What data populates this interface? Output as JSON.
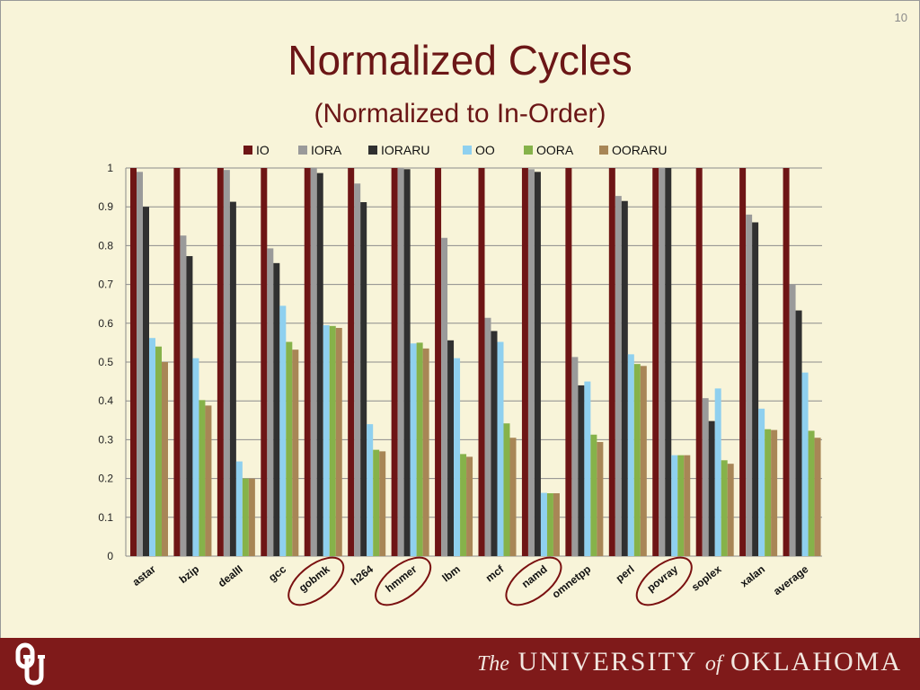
{
  "slide": {
    "page_number": "10",
    "title": "Normalized Cycles",
    "subtitle": "(Normalized to In-Order)"
  },
  "footer": {
    "university_prefix": "The",
    "university_main": "UNIVERSITY",
    "university_of": "of",
    "university_state": "OKLAHOMA",
    "logo_icon": "ou-logo-icon"
  },
  "colors": {
    "title": "#6b1616",
    "footer_bg": "#7f1a1a",
    "circle": "#7a1010"
  },
  "chart_data": {
    "type": "bar",
    "title": "",
    "xlabel": "",
    "ylabel": "",
    "ylim": [
      0,
      1
    ],
    "yticks": [
      "0",
      "0.1",
      "0.2",
      "0.3",
      "0.4",
      "0.5",
      "0.6",
      "0.7",
      "0.8",
      "0.9",
      "1"
    ],
    "grid": true,
    "legend_position": "top",
    "categories": [
      "astar",
      "bzip",
      "dealII",
      "gcc",
      "gobmk",
      "h264",
      "hmmer",
      "lbm",
      "mcf",
      "namd",
      "omnetpp",
      "perl",
      "povray",
      "soplex",
      "xalan",
      "average"
    ],
    "circled_categories": [
      "gobmk",
      "hmmer",
      "namd",
      "povray"
    ],
    "series": [
      {
        "name": "IO",
        "color": "#6e1515",
        "values": [
          1,
          1,
          1,
          1,
          1,
          1,
          1,
          1,
          1,
          1,
          1,
          1,
          1,
          1,
          1,
          1
        ]
      },
      {
        "name": "IORA",
        "color": "#9a9a9a",
        "values": [
          0.99,
          0.826,
          0.995,
          0.793,
          1.0,
          0.96,
          1.0,
          0.82,
          0.614,
          0.997,
          0.513,
          0.928,
          1.0,
          0.407,
          0.88,
          0.7
        ]
      },
      {
        "name": "IORARU",
        "color": "#303030",
        "values": [
          0.9,
          0.773,
          0.913,
          0.755,
          0.987,
          0.912,
          0.997,
          0.556,
          0.58,
          0.99,
          0.44,
          0.915,
          1.0,
          0.348,
          0.86,
          0.633
        ]
      },
      {
        "name": "OO",
        "color": "#8fd0ef",
        "values": [
          0.562,
          0.51,
          0.244,
          0.645,
          0.595,
          0.34,
          0.548,
          0.51,
          0.552,
          0.163,
          0.45,
          0.52,
          0.26,
          0.432,
          0.38,
          0.473
        ]
      },
      {
        "name": "OORA",
        "color": "#86b24a",
        "values": [
          0.54,
          0.402,
          0.2,
          0.552,
          0.593,
          0.274,
          0.55,
          0.263,
          0.342,
          0.162,
          0.313,
          0.495,
          0.26,
          0.247,
          0.327,
          0.323
        ]
      },
      {
        "name": "OORARU",
        "color": "#a88656",
        "values": [
          0.5,
          0.388,
          0.2,
          0.532,
          0.588,
          0.27,
          0.535,
          0.256,
          0.305,
          0.162,
          0.294,
          0.49,
          0.26,
          0.238,
          0.325,
          0.305
        ]
      }
    ]
  }
}
